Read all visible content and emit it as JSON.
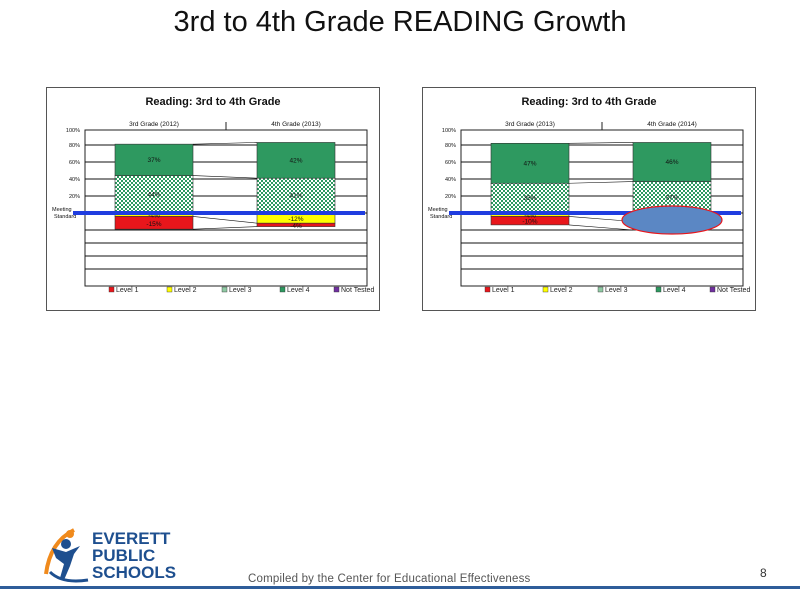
{
  "slide": {
    "title": "3rd to 4th Grade READING Growth",
    "footer": "Compiled by the Center for Educational Effectiveness",
    "page_number": "8",
    "logo_lines": [
      "EVERETT",
      "PUBLIC",
      "SCHOOLS"
    ]
  },
  "colors": {
    "level1": "#e8161b",
    "level2": "#ffff00",
    "level3": "#8fc9a3",
    "level4": "#2e9960",
    "not_tested": "#7030a0",
    "standard_line": "#1f3de0",
    "highlight": "#5b87c4",
    "highlight_border": "#e8161b"
  },
  "chart_data": [
    {
      "type": "bar",
      "title": "Reading: 3rd to 4th Grade",
      "categories": [
        "3rd Grade (2012)",
        "4th Grade (2013)"
      ],
      "y_tick_labels": [
        "100%",
        "80%",
        "60%",
        "40%",
        "20%"
      ],
      "meeting_standard_label": [
        "Meeting",
        "Standard"
      ],
      "legend": [
        "Level 1",
        "Level 2",
        "Level 3",
        "Level 4",
        "Not Tested"
      ],
      "series": [
        {
          "name": "Level 4",
          "values": [
            37,
            42
          ]
        },
        {
          "name": "Level 3",
          "values": [
            44,
            41
          ]
        },
        {
          "name": "Level 2",
          "values": [
            -4,
            -12
          ]
        },
        {
          "name": "Level 1",
          "values": [
            -15,
            -4
          ]
        },
        {
          "name": "Not Tested",
          "values": [
            0,
            0
          ]
        }
      ],
      "data_labels": [
        {
          "level4": "37%",
          "level3": "44%",
          "level2": "-4%",
          "level1": "-15%"
        },
        {
          "level4": "42%",
          "level3": "41%",
          "level2": "-12%",
          "level1": "-4%"
        }
      ],
      "highlight_bar": null
    },
    {
      "type": "bar",
      "title": "Reading: 3rd to 4th Grade",
      "categories": [
        "3rd Grade (2013)",
        "4th Grade (2014)"
      ],
      "y_tick_labels": [
        "100%",
        "80%",
        "60%",
        "40%",
        "20%"
      ],
      "meeting_standard_label": [
        "Meeting",
        "Standard"
      ],
      "legend": [
        "Level 1",
        "Level 2",
        "Level 3",
        "Level 4",
        "Not Tested"
      ],
      "series": [
        {
          "name": "Level 4",
          "values": [
            47,
            46
          ]
        },
        {
          "name": "Level 3",
          "values": [
            35,
            37
          ]
        },
        {
          "name": "Level 2",
          "values": [
            -4,
            -10
          ]
        },
        {
          "name": "Level 1",
          "values": [
            -10,
            -10
          ]
        },
        {
          "name": "Not Tested",
          "values": [
            0,
            0
          ]
        }
      ],
      "data_labels": [
        {
          "level4": "47%",
          "level3": "35%",
          "level2": "-4%",
          "level1": "-10%"
        },
        {
          "level4": "46%",
          "level3": "37%",
          "level2": "",
          "level1": ""
        }
      ],
      "highlight_bar": 1
    }
  ]
}
